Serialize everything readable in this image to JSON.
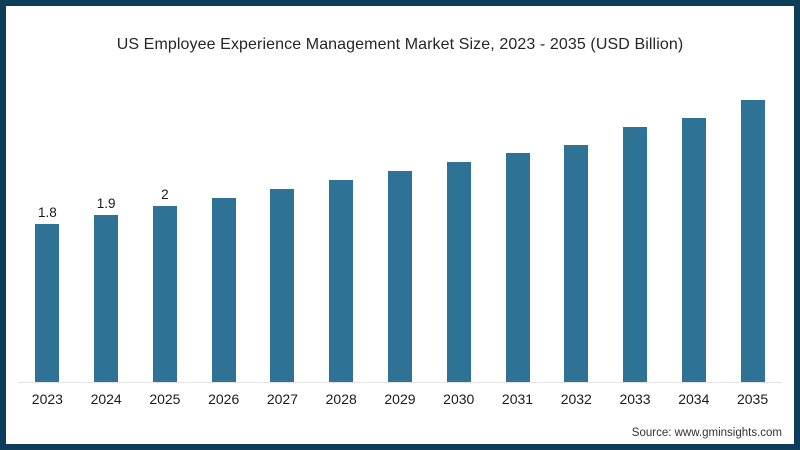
{
  "frame": {
    "border_color": "#0e3d5c",
    "background": "#ffffff"
  },
  "source": "Source: www.gminsights.com",
  "chart_data": {
    "type": "bar",
    "title": "US Employee Experience Management Market Size, 2023 - 2035 (USD Billion)",
    "categories": [
      "2023",
      "2024",
      "2025",
      "2026",
      "2027",
      "2028",
      "2029",
      "2030",
      "2031",
      "2032",
      "2033",
      "2034",
      "2035"
    ],
    "values": [
      1.8,
      1.9,
      2,
      2.1,
      2.2,
      2.3,
      2.4,
      2.5,
      2.6,
      2.7,
      2.9,
      3,
      3.2
    ],
    "bar_labels_shown": [
      "1.8",
      "1.9",
      "2",
      "",
      "",
      "",
      "",
      "",
      "",
      "",
      "",
      "",
      ""
    ],
    "xlabel": "",
    "ylabel": "",
    "ylim": [
      0,
      3.6
    ],
    "bar_color": "#2e7396",
    "grid": false,
    "legend": false
  }
}
